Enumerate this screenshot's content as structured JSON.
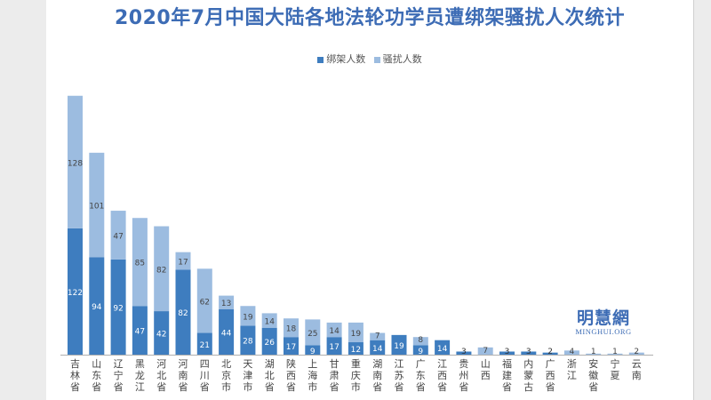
{
  "colors": {
    "kidnap": "#3e7dbf",
    "harass": "#9cbce0",
    "axis": "#b0b0b0",
    "title": "#3d6cb5",
    "label": "#444444"
  },
  "chart_data": {
    "type": "bar",
    "stacked": true,
    "title": "2020年7月中国大陆各地法轮功学员遭绑架骚扰人次统计",
    "legend_position": "top",
    "grid": false,
    "ylim": [
      0,
      260
    ],
    "categories": [
      "吉林省",
      "山东省",
      "辽宁省",
      "黑龙江",
      "河北省",
      "河南省",
      "四川省",
      "北京市",
      "天津市",
      "湖北省",
      "陕西省",
      "上海市",
      "甘肃省",
      "重庆市",
      "湖南省",
      "江苏省",
      "广东省",
      "江西省",
      "贵州省",
      "山西",
      "福建省",
      "内蒙古",
      "广西省",
      "浙江",
      "安徽省",
      "宁夏",
      "云南"
    ],
    "series": [
      {
        "name": "绑架人数",
        "values": [
          122,
          94,
          92,
          47,
          42,
          82,
          21,
          44,
          28,
          26,
          17,
          9,
          17,
          12,
          14,
          19,
          9,
          14,
          3,
          0,
          3,
          3,
          2,
          0,
          0,
          0,
          0
        ]
      },
      {
        "name": "骚扰人数",
        "values": [
          128,
          101,
          47,
          85,
          82,
          17,
          62,
          13,
          19,
          14,
          18,
          25,
          14,
          19,
          7,
          0,
          8,
          0,
          0,
          7,
          0,
          0,
          0,
          4,
          1,
          1,
          2
        ]
      }
    ],
    "data_labels": [
      {
        "kidnap": "122",
        "harass": "128"
      },
      {
        "kidnap": "94",
        "harass": "101"
      },
      {
        "kidnap": "92",
        "harass": "47"
      },
      {
        "kidnap": "47",
        "harass": "85"
      },
      {
        "kidnap": "42",
        "harass": "82"
      },
      {
        "kidnap": "82",
        "harass": "17"
      },
      {
        "kidnap": "21",
        "harass": "62"
      },
      {
        "kidnap": "44",
        "harass": "13"
      },
      {
        "kidnap": "28",
        "harass": "19"
      },
      {
        "kidnap": "26",
        "harass": "14"
      },
      {
        "kidnap": "17",
        "harass": "18"
      },
      {
        "kidnap": "9",
        "harass": "25"
      },
      {
        "kidnap": "17",
        "harass": "14"
      },
      {
        "kidnap": "12",
        "harass": "19"
      },
      {
        "kidnap": "14",
        "harass": "7"
      },
      {
        "kidnap": "19",
        "harass": ""
      },
      {
        "kidnap": "9",
        "harass": "8"
      },
      {
        "kidnap": "14",
        "harass": ""
      },
      {
        "kidnap": "3",
        "harass": ""
      },
      {
        "kidnap": "",
        "harass": "7"
      },
      {
        "kidnap": "3",
        "harass": ""
      },
      {
        "kidnap": "3",
        "harass": ""
      },
      {
        "kidnap": "2",
        "harass": ""
      },
      {
        "kidnap": "",
        "harass": "4"
      },
      {
        "kidnap": "",
        "harass": "1"
      },
      {
        "kidnap": "",
        "harass": "1"
      },
      {
        "kidnap": "",
        "harass": "2"
      }
    ]
  },
  "watermark": {
    "cn": "明慧網",
    "en": "MINGHUI.ORG"
  }
}
